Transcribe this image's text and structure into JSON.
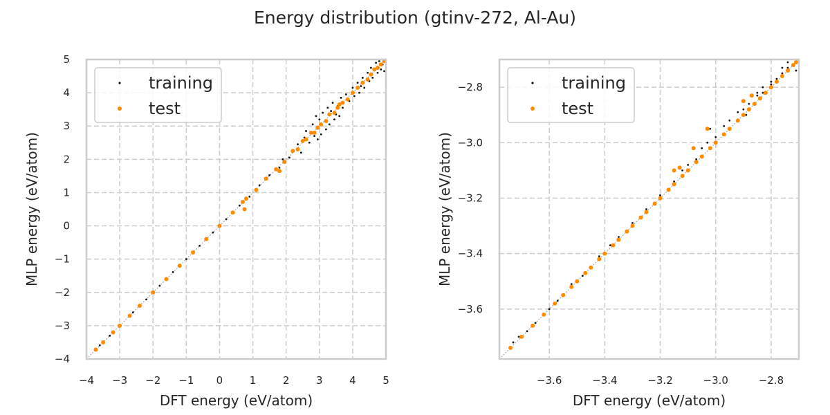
{
  "figure": {
    "title": "Energy distribution (gtinv-272, Al-Au)"
  },
  "colors": {
    "training": "#111111",
    "test": "#ff8c00",
    "grid": "#cccccc",
    "frame": "#cccccc"
  },
  "chart_data": [
    {
      "type": "scatter",
      "xlabel": "DFT energy (eV/atom)",
      "ylabel": "MLP energy (eV/atom)",
      "xlim": [
        -4,
        5
      ],
      "ylim": [
        -4,
        5
      ],
      "xticks": [
        -4,
        -3,
        -2,
        -1,
        0,
        1,
        2,
        3,
        4,
        5
      ],
      "yticks": [
        -4,
        -3,
        -2,
        -1,
        0,
        1,
        2,
        3,
        4,
        5
      ],
      "xtick_labels": [
        "−4",
        "−3",
        "−2",
        "−1",
        "0",
        "1",
        "2",
        "3",
        "4",
        "5"
      ],
      "ytick_labels": [
        "−4",
        "−3",
        "−2",
        "−1",
        "0",
        "1",
        "2",
        "3",
        "4",
        "5"
      ],
      "grid": true,
      "legend_position": "top-left",
      "reference_line": "y = x",
      "series": [
        {
          "name": "training",
          "points": [
            [
              -3.72,
              -3.71
            ],
            [
              -3.6,
              -3.59
            ],
            [
              -3.3,
              -3.3
            ],
            [
              -3.0,
              -3.0
            ],
            [
              -2.6,
              -2.6
            ],
            [
              -2.2,
              -2.21
            ],
            [
              -1.8,
              -1.8
            ],
            [
              -1.4,
              -1.39
            ],
            [
              -1.0,
              -1.0
            ],
            [
              -0.6,
              -0.6
            ],
            [
              -0.2,
              -0.2
            ],
            [
              0.2,
              0.2
            ],
            [
              0.6,
              0.61
            ],
            [
              0.9,
              0.88
            ],
            [
              1.2,
              1.22
            ],
            [
              1.5,
              1.52
            ],
            [
              1.8,
              1.75
            ],
            [
              1.9,
              2.0
            ],
            [
              2.1,
              2.05
            ],
            [
              2.35,
              2.45
            ],
            [
              2.45,
              2.2
            ],
            [
              2.6,
              2.85
            ],
            [
              2.7,
              2.5
            ],
            [
              2.8,
              3.05
            ],
            [
              2.85,
              2.7
            ],
            [
              2.9,
              3.3
            ],
            [
              2.95,
              2.6
            ],
            [
              3.0,
              3.2
            ],
            [
              3.05,
              2.75
            ],
            [
              3.1,
              3.4
            ],
            [
              3.2,
              2.9
            ],
            [
              3.25,
              3.55
            ],
            [
              3.3,
              3.05
            ],
            [
              3.4,
              3.7
            ],
            [
              3.45,
              3.2
            ],
            [
              3.5,
              3.35
            ],
            [
              3.55,
              3.6
            ],
            [
              3.6,
              3.3
            ],
            [
              3.65,
              3.85
            ],
            [
              3.7,
              3.55
            ],
            [
              3.8,
              3.95
            ],
            [
              3.9,
              3.75
            ],
            [
              4.0,
              4.15
            ],
            [
              4.05,
              3.9
            ],
            [
              4.15,
              4.3
            ],
            [
              4.2,
              4.0
            ],
            [
              4.3,
              4.45
            ],
            [
              4.35,
              4.15
            ],
            [
              4.45,
              4.6
            ],
            [
              4.5,
              4.35
            ],
            [
              4.55,
              4.75
            ],
            [
              4.6,
              4.45
            ],
            [
              4.7,
              4.9
            ],
            [
              4.75,
              4.6
            ],
            [
              4.8,
              4.95
            ],
            [
              4.85,
              4.7
            ],
            [
              4.9,
              4.85
            ],
            [
              4.95,
              4.65
            ],
            [
              2.55,
              2.65
            ],
            [
              3.35,
              3.45
            ],
            [
              4.25,
              4.2
            ]
          ]
        },
        {
          "name": "test",
          "points": [
            [
              -3.72,
              -3.72
            ],
            [
              -3.5,
              -3.5
            ],
            [
              -3.2,
              -3.2
            ],
            [
              -3.0,
              -3.0
            ],
            [
              -2.7,
              -2.7
            ],
            [
              -2.4,
              -2.4
            ],
            [
              -2.0,
              -2.0
            ],
            [
              -1.6,
              -1.6
            ],
            [
              -1.2,
              -1.2
            ],
            [
              -0.8,
              -0.8
            ],
            [
              -0.4,
              -0.4
            ],
            [
              0.0,
              0.0
            ],
            [
              0.4,
              0.4
            ],
            [
              0.7,
              0.72
            ],
            [
              0.75,
              0.5
            ],
            [
              0.8,
              0.82
            ],
            [
              1.1,
              1.08
            ],
            [
              1.4,
              1.42
            ],
            [
              1.7,
              1.7
            ],
            [
              1.8,
              1.65
            ],
            [
              1.95,
              1.92
            ],
            [
              2.2,
              2.25
            ],
            [
              2.35,
              2.3
            ],
            [
              2.5,
              2.55
            ],
            [
              2.6,
              2.6
            ],
            [
              2.75,
              2.8
            ],
            [
              2.85,
              2.8
            ],
            [
              2.95,
              2.95
            ],
            [
              3.05,
              3.05
            ],
            [
              3.2,
              3.15
            ],
            [
              3.3,
              3.35
            ],
            [
              3.45,
              3.4
            ],
            [
              3.55,
              3.55
            ],
            [
              3.6,
              3.65
            ],
            [
              3.7,
              3.7
            ],
            [
              3.85,
              3.8
            ],
            [
              4.0,
              4.0
            ],
            [
              4.15,
              4.15
            ],
            [
              4.3,
              4.3
            ],
            [
              4.45,
              4.4
            ],
            [
              4.55,
              4.55
            ],
            [
              4.65,
              4.7
            ],
            [
              4.75,
              4.75
            ],
            [
              4.85,
              4.85
            ],
            [
              4.95,
              4.95
            ]
          ]
        }
      ]
    },
    {
      "type": "scatter",
      "xlabel": "DFT energy (eV/atom)",
      "ylabel": "MLP energy (eV/atom)",
      "xlim": [
        -3.78,
        -2.7
      ],
      "ylim": [
        -3.78,
        -2.7
      ],
      "xticks": [
        -3.6,
        -3.4,
        -3.2,
        -3.0,
        -2.8
      ],
      "yticks": [
        -3.6,
        -3.4,
        -3.2,
        -3.0,
        -2.8
      ],
      "xtick_labels": [
        "−3.6",
        "−3.4",
        "−3.2",
        "−3.0",
        "−2.8"
      ],
      "ytick_labels": [
        "−3.6",
        "−3.4",
        "−3.2",
        "−3.0",
        "−2.8"
      ],
      "grid": true,
      "legend_position": "top-left",
      "reference_line": "y = x",
      "series": [
        {
          "name": "training",
          "points": [
            [
              -3.73,
              -3.72
            ],
            [
              -3.71,
              -3.7
            ],
            [
              -3.68,
              -3.68
            ],
            [
              -3.65,
              -3.65
            ],
            [
              -3.62,
              -3.62
            ],
            [
              -3.6,
              -3.6
            ],
            [
              -3.57,
              -3.57
            ],
            [
              -3.55,
              -3.55
            ],
            [
              -3.52,
              -3.51
            ],
            [
              -3.48,
              -3.48
            ],
            [
              -3.45,
              -3.45
            ],
            [
              -3.42,
              -3.41
            ],
            [
              -3.38,
              -3.37
            ],
            [
              -3.35,
              -3.34
            ],
            [
              -3.3,
              -3.29
            ],
            [
              -3.25,
              -3.24
            ],
            [
              -3.2,
              -3.19
            ],
            [
              -3.15,
              -3.14
            ],
            [
              -3.12,
              -3.1
            ],
            [
              -3.1,
              -3.08
            ],
            [
              -3.07,
              -3.06
            ],
            [
              -3.05,
              -3.02
            ],
            [
              -3.03,
              -3.0
            ],
            [
              -3.0,
              -2.98
            ],
            [
              -2.97,
              -2.94
            ],
            [
              -2.95,
              -2.92
            ],
            [
              -2.92,
              -2.89
            ],
            [
              -2.9,
              -2.88
            ],
            [
              -2.88,
              -2.86
            ],
            [
              -2.85,
              -2.83
            ],
            [
              -2.83,
              -2.82
            ],
            [
              -2.8,
              -2.79
            ],
            [
              -2.78,
              -2.77
            ],
            [
              -2.76,
              -2.75
            ],
            [
              -2.74,
              -2.73
            ],
            [
              -2.72,
              -2.72
            ],
            [
              -2.71,
              -2.74
            ],
            [
              -2.85,
              -2.82
            ],
            [
              -2.83,
              -2.8
            ],
            [
              -2.8,
              -2.78
            ],
            [
              -2.76,
              -2.73
            ],
            [
              -2.74,
              -2.71
            ],
            [
              -2.72,
              -2.69
            ],
            [
              -3.02,
              -2.95
            ],
            [
              -3.08,
              -3.02
            ],
            [
              -2.89,
              -2.9
            ]
          ]
        },
        {
          "name": "test",
          "points": [
            [
              -3.74,
              -3.74
            ],
            [
              -3.7,
              -3.7
            ],
            [
              -3.66,
              -3.66
            ],
            [
              -3.62,
              -3.62
            ],
            [
              -3.58,
              -3.58
            ],
            [
              -3.55,
              -3.55
            ],
            [
              -3.52,
              -3.52
            ],
            [
              -3.5,
              -3.5
            ],
            [
              -3.47,
              -3.47
            ],
            [
              -3.45,
              -3.45
            ],
            [
              -3.42,
              -3.42
            ],
            [
              -3.4,
              -3.4
            ],
            [
              -3.37,
              -3.37
            ],
            [
              -3.35,
              -3.35
            ],
            [
              -3.32,
              -3.32
            ],
            [
              -3.3,
              -3.3
            ],
            [
              -3.27,
              -3.27
            ],
            [
              -3.25,
              -3.25
            ],
            [
              -3.22,
              -3.22
            ],
            [
              -3.2,
              -3.2
            ],
            [
              -3.17,
              -3.17
            ],
            [
              -3.15,
              -3.15
            ],
            [
              -3.12,
              -3.12
            ],
            [
              -3.1,
              -3.1
            ],
            [
              -3.07,
              -3.07
            ],
            [
              -3.05,
              -3.05
            ],
            [
              -3.02,
              -3.02
            ],
            [
              -3.0,
              -3.0
            ],
            [
              -2.97,
              -2.97
            ],
            [
              -2.95,
              -2.95
            ],
            [
              -2.92,
              -2.92
            ],
            [
              -2.9,
              -2.9
            ],
            [
              -2.88,
              -2.88
            ],
            [
              -2.86,
              -2.86
            ],
            [
              -2.84,
              -2.84
            ],
            [
              -2.82,
              -2.82
            ],
            [
              -2.8,
              -2.8
            ],
            [
              -2.78,
              -2.78
            ],
            [
              -2.76,
              -2.76
            ],
            [
              -2.74,
              -2.74
            ],
            [
              -2.72,
              -2.72
            ],
            [
              -2.71,
              -2.71
            ],
            [
              -3.13,
              -3.09
            ],
            [
              -3.15,
              -3.1
            ],
            [
              -3.08,
              -3.02
            ],
            [
              -3.03,
              -2.95
            ],
            [
              -2.9,
              -2.85
            ],
            [
              -2.87,
              -2.83
            ]
          ]
        }
      ]
    }
  ]
}
